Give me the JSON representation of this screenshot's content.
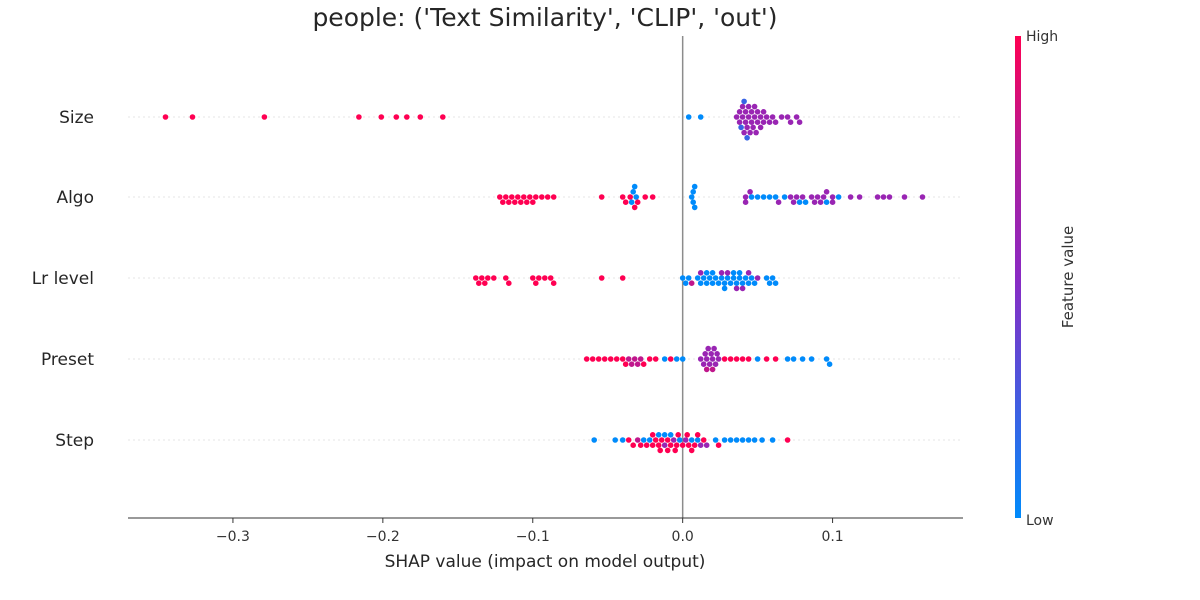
{
  "chart_data": {
    "type": "scatter",
    "title": "people: ('Text Similarity', 'CLIP', 'out')",
    "xlabel": "SHAP value (impact on model output)",
    "xlim": [
      -0.37,
      0.187
    ],
    "xticks": [
      {
        "value": -0.3,
        "label": "−0.3"
      },
      {
        "value": -0.2,
        "label": "−0.2"
      },
      {
        "value": -0.1,
        "label": "−0.1"
      },
      {
        "value": 0.0,
        "label": "0.0"
      },
      {
        "value": 0.1,
        "label": "0.1"
      }
    ],
    "features": [
      "Size",
      "Algo",
      "Lr level",
      "Preset",
      "Step"
    ],
    "colorbar": {
      "title": "Feature value",
      "high": "High",
      "low": "Low",
      "low_color": "#008bfb",
      "high_color": "#ff0052"
    },
    "grid": "horizontal dotted per feature",
    "zero_line": true,
    "series": [
      {
        "feature": "Size",
        "points": [
          [
            -0.345,
            1
          ],
          [
            -0.327,
            1
          ],
          [
            -0.279,
            1
          ],
          [
            -0.216,
            1
          ],
          [
            -0.201,
            1
          ],
          [
            -0.191,
            1
          ],
          [
            -0.184,
            1
          ],
          [
            -0.175,
            1
          ],
          [
            -0.16,
            1
          ],
          [
            0.004,
            0
          ],
          [
            0.012,
            0
          ],
          [
            0.036,
            0.6
          ],
          [
            0.038,
            0.6
          ],
          [
            0.04,
            0.6
          ],
          [
            0.041,
            0.6
          ],
          [
            0.042,
            0.6
          ],
          [
            0.043,
            0.6
          ],
          [
            0.044,
            0.6
          ],
          [
            0.045,
            0.6
          ],
          [
            0.046,
            0.6
          ],
          [
            0.047,
            0.6
          ],
          [
            0.048,
            0.6
          ],
          [
            0.049,
            0.6
          ],
          [
            0.05,
            0.6
          ],
          [
            0.052,
            0.6
          ],
          [
            0.054,
            0.6
          ],
          [
            0.056,
            0.6
          ],
          [
            0.058,
            0.6
          ],
          [
            0.06,
            0.6
          ],
          [
            0.062,
            0.6
          ],
          [
            0.066,
            0.6
          ],
          [
            0.07,
            0.6
          ],
          [
            0.072,
            0.6
          ],
          [
            0.076,
            0.6
          ],
          [
            0.078,
            0.6
          ],
          [
            0.038,
            0.6
          ],
          [
            0.042,
            0.6
          ],
          [
            0.046,
            0.6
          ],
          [
            0.05,
            0.6
          ],
          [
            0.054,
            0.6
          ],
          [
            0.04,
            0.6
          ],
          [
            0.044,
            0.6
          ],
          [
            0.048,
            0.6
          ],
          [
            0.052,
            0.6
          ],
          [
            0.039,
            0.2
          ],
          [
            0.041,
            0.2
          ],
          [
            0.043,
            0.2
          ]
        ]
      },
      {
        "feature": "Algo",
        "points": [
          [
            -0.122,
            1
          ],
          [
            -0.12,
            1
          ],
          [
            -0.118,
            1
          ],
          [
            -0.116,
            1
          ],
          [
            -0.114,
            1
          ],
          [
            -0.112,
            1
          ],
          [
            -0.11,
            1
          ],
          [
            -0.108,
            1
          ],
          [
            -0.106,
            1
          ],
          [
            -0.104,
            1
          ],
          [
            -0.102,
            1
          ],
          [
            -0.1,
            1
          ],
          [
            -0.098,
            1
          ],
          [
            -0.094,
            1
          ],
          [
            -0.09,
            1
          ],
          [
            -0.086,
            1
          ],
          [
            -0.054,
            1
          ],
          [
            -0.04,
            1
          ],
          [
            -0.038,
            1
          ],
          [
            -0.035,
            1
          ],
          [
            -0.032,
            1
          ],
          [
            -0.03,
            1
          ],
          [
            -0.025,
            1
          ],
          [
            -0.02,
            1
          ],
          [
            -0.033,
            0
          ],
          [
            -0.032,
            0
          ],
          [
            -0.034,
            0
          ],
          [
            -0.031,
            0
          ],
          [
            0.006,
            0
          ],
          [
            0.007,
            0
          ],
          [
            0.008,
            0
          ],
          [
            0.008,
            0
          ],
          [
            0.007,
            0
          ],
          [
            0.042,
            0.6
          ],
          [
            0.046,
            0
          ],
          [
            0.05,
            0
          ],
          [
            0.054,
            0
          ],
          [
            0.058,
            0
          ],
          [
            0.062,
            0
          ],
          [
            0.064,
            0.6
          ],
          [
            0.068,
            0
          ],
          [
            0.072,
            0.6
          ],
          [
            0.074,
            0.6
          ],
          [
            0.078,
            0
          ],
          [
            0.082,
            0
          ],
          [
            0.086,
            0.6
          ],
          [
            0.09,
            0.6
          ],
          [
            0.094,
            0.6
          ],
          [
            0.096,
            0
          ],
          [
            0.1,
            0.6
          ],
          [
            0.104,
            0
          ],
          [
            0.112,
            0.6
          ],
          [
            0.118,
            0.6
          ],
          [
            0.13,
            0.6
          ],
          [
            0.134,
            0.6
          ],
          [
            0.138,
            0.6
          ],
          [
            0.148,
            0.6
          ],
          [
            0.16,
            0.6
          ],
          [
            0.045,
            0.6
          ],
          [
            0.076,
            0.6
          ],
          [
            0.088,
            0.6
          ],
          [
            0.092,
            0.6
          ],
          [
            0.1,
            0.6
          ],
          [
            0.096,
            0.6
          ],
          [
            0.08,
            0.6
          ],
          [
            0.042,
            0.6
          ]
        ]
      },
      {
        "feature": "Lr level",
        "points": [
          [
            -0.138,
            1
          ],
          [
            -0.136,
            1
          ],
          [
            -0.134,
            1
          ],
          [
            -0.132,
            1
          ],
          [
            -0.13,
            1
          ],
          [
            -0.126,
            1
          ],
          [
            -0.118,
            1
          ],
          [
            -0.116,
            1
          ],
          [
            -0.1,
            1
          ],
          [
            -0.098,
            1
          ],
          [
            -0.096,
            1
          ],
          [
            -0.092,
            1
          ],
          [
            -0.088,
            1
          ],
          [
            -0.086,
            1
          ],
          [
            -0.054,
            1
          ],
          [
            -0.04,
            1
          ],
          [
            0.0,
            0
          ],
          [
            0.002,
            0
          ],
          [
            0.004,
            0
          ],
          [
            0.006,
            0.8
          ],
          [
            0.01,
            0
          ],
          [
            0.012,
            0
          ],
          [
            0.014,
            0
          ],
          [
            0.016,
            0
          ],
          [
            0.018,
            0
          ],
          [
            0.02,
            0
          ],
          [
            0.022,
            0
          ],
          [
            0.024,
            0
          ],
          [
            0.026,
            0
          ],
          [
            0.028,
            0
          ],
          [
            0.03,
            0
          ],
          [
            0.032,
            0
          ],
          [
            0.034,
            0
          ],
          [
            0.036,
            0
          ],
          [
            0.038,
            0
          ],
          [
            0.04,
            0
          ],
          [
            0.042,
            0
          ],
          [
            0.044,
            0
          ],
          [
            0.046,
            0
          ],
          [
            0.048,
            0
          ],
          [
            0.04,
            0.6
          ],
          [
            0.044,
            0.6
          ],
          [
            0.05,
            0.6
          ],
          [
            0.056,
            0
          ],
          [
            0.058,
            0
          ],
          [
            0.06,
            0
          ],
          [
            0.062,
            0
          ],
          [
            0.03,
            0.6
          ],
          [
            0.036,
            0.6
          ],
          [
            0.026,
            0.6
          ],
          [
            0.012,
            0.6
          ],
          [
            0.02,
            0
          ],
          [
            0.028,
            0
          ],
          [
            0.034,
            0
          ],
          [
            0.016,
            0
          ],
          [
            0.038,
            0
          ]
        ]
      },
      {
        "feature": "Preset",
        "points": [
          [
            -0.064,
            1
          ],
          [
            -0.06,
            1
          ],
          [
            -0.056,
            1
          ],
          [
            -0.052,
            1
          ],
          [
            -0.048,
            1
          ],
          [
            -0.044,
            1
          ],
          [
            -0.04,
            1
          ],
          [
            -0.038,
            1
          ],
          [
            -0.036,
            0.8
          ],
          [
            -0.034,
            0.8
          ],
          [
            -0.032,
            0.8
          ],
          [
            -0.03,
            0.8
          ],
          [
            -0.028,
            0.8
          ],
          [
            -0.026,
            1
          ],
          [
            -0.022,
            1
          ],
          [
            -0.018,
            1
          ],
          [
            -0.012,
            0
          ],
          [
            -0.008,
            1
          ],
          [
            -0.004,
            0
          ],
          [
            0.0,
            0
          ],
          [
            0.012,
            0.6
          ],
          [
            0.014,
            0.6
          ],
          [
            0.016,
            0.6
          ],
          [
            0.018,
            0.6
          ],
          [
            0.02,
            0.6
          ],
          [
            0.022,
            0.6
          ],
          [
            0.024,
            0.6
          ],
          [
            0.016,
            0.8
          ],
          [
            0.02,
            0.8
          ],
          [
            0.028,
            1
          ],
          [
            0.032,
            1
          ],
          [
            0.036,
            1
          ],
          [
            0.04,
            1
          ],
          [
            0.044,
            1
          ],
          [
            0.05,
            0
          ],
          [
            0.056,
            1
          ],
          [
            0.062,
            1
          ],
          [
            0.07,
            0
          ],
          [
            0.074,
            0
          ],
          [
            0.08,
            0
          ],
          [
            0.086,
            0
          ],
          [
            0.096,
            0
          ],
          [
            0.098,
            0
          ],
          [
            0.015,
            0.6
          ],
          [
            0.019,
            0.6
          ],
          [
            0.023,
            0.6
          ],
          [
            0.017,
            0.6
          ],
          [
            0.021,
            0.6
          ]
        ]
      },
      {
        "feature": "Step",
        "points": [
          [
            -0.059,
            0
          ],
          [
            -0.045,
            0
          ],
          [
            -0.04,
            0
          ],
          [
            -0.036,
            1
          ],
          [
            -0.033,
            1
          ],
          [
            -0.03,
            0.8
          ],
          [
            -0.028,
            1
          ],
          [
            -0.026,
            0
          ],
          [
            -0.024,
            1
          ],
          [
            -0.022,
            0
          ],
          [
            -0.02,
            1
          ],
          [
            -0.018,
            1
          ],
          [
            -0.016,
            1
          ],
          [
            -0.014,
            1
          ],
          [
            -0.012,
            0.6
          ],
          [
            -0.01,
            1
          ],
          [
            -0.008,
            1
          ],
          [
            -0.006,
            0.6
          ],
          [
            -0.004,
            1
          ],
          [
            -0.002,
            0
          ],
          [
            0.0,
            1
          ],
          [
            0.002,
            0.6
          ],
          [
            0.004,
            1
          ],
          [
            0.006,
            0
          ],
          [
            0.008,
            1
          ],
          [
            0.01,
            0
          ],
          [
            0.012,
            0.6
          ],
          [
            0.014,
            1
          ],
          [
            0.016,
            0.6
          ],
          [
            0.022,
            0
          ],
          [
            0.024,
            1
          ],
          [
            0.028,
            0
          ],
          [
            0.032,
            0
          ],
          [
            0.036,
            0
          ],
          [
            0.04,
            0
          ],
          [
            0.044,
            0
          ],
          [
            0.048,
            0
          ],
          [
            0.053,
            0
          ],
          [
            0.06,
            0
          ],
          [
            0.07,
            1
          ],
          [
            -0.016,
            0
          ],
          [
            -0.012,
            0
          ],
          [
            -0.008,
            0
          ],
          [
            -0.02,
            1
          ],
          [
            -0.015,
            1
          ],
          [
            -0.01,
            1
          ],
          [
            -0.005,
            1
          ],
          [
            0.006,
            1
          ],
          [
            0.003,
            1
          ],
          [
            -0.003,
            1
          ],
          [
            0.01,
            1
          ]
        ]
      }
    ]
  }
}
